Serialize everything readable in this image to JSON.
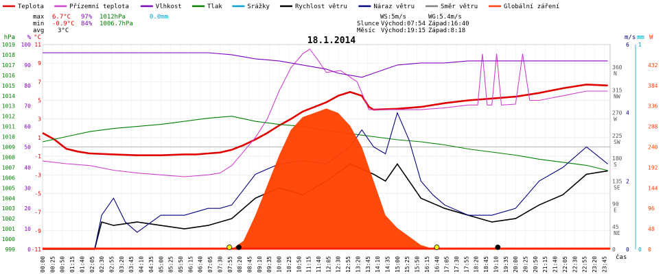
{
  "chart_data": {
    "type": "line",
    "title": "18.1.2014",
    "xlabel": "čas",
    "legend": [
      {
        "name": "Teplota",
        "color": "#e00000"
      },
      {
        "name": "Přízemní teplota",
        "color": "#d040d0"
      },
      {
        "name": "Vlhkost",
        "color": "#8000c0"
      },
      {
        "name": "Tlak",
        "color": "#008000"
      },
      {
        "name": "Srážky",
        "color": "#00a0d0"
      },
      {
        "name": "Rychlost větru",
        "color": "#000000"
      },
      {
        "name": "Náraz větru",
        "color": "#000080"
      },
      {
        "name": "Směr větru",
        "color": "#808080"
      },
      {
        "name": "Globální záření",
        "color": "#ff4000"
      }
    ],
    "stats": {
      "max": {
        "label": "max",
        "temp": "6.7°C",
        "hum": "97%",
        "press": "1012hPa",
        "rain": "0.0mm"
      },
      "min": {
        "label": "min",
        "temp": "-0.9°C",
        "hum": "84%",
        "press": "1006.7hPa"
      },
      "avg": {
        "label": "avg",
        "temp": "3°C"
      }
    },
    "wind_info": {
      "ws": "WS:5m/s",
      "wg": "WG:5.4m/s"
    },
    "sun_info": {
      "label": "Slunce",
      "rise": "Východ:07:54",
      "set": "Západ:16:40"
    },
    "moon_info": {
      "label": "Měsíc",
      "rise": "Východ:19:15",
      "set": "Západ:8:18"
    },
    "axes": {
      "pressure": {
        "unit": "hPa",
        "ticks": [
          "1019",
          "1018",
          "1017",
          "1016",
          "1015",
          "1014",
          "1013",
          "1012",
          "1011",
          "1010",
          "1009",
          "1008",
          "1007",
          "1006",
          "1005",
          "1004",
          "1003",
          "1002",
          "1001",
          "1000",
          "999"
        ],
        "color": "#008000"
      },
      "humidity": {
        "unit": "%",
        "ticks": [
          "100",
          "90",
          "80",
          "70",
          "60",
          "50",
          "40",
          "30",
          "20",
          "10",
          "0"
        ],
        "color": "#8000c0"
      },
      "temperature": {
        "unit": "°C",
        "ticks": [
          "11",
          "9",
          "7",
          "5",
          "3",
          "1",
          "-1",
          "-3",
          "-5",
          "-7",
          "-9",
          "-11"
        ],
        "color": "#e00000"
      },
      "direction": {
        "ticks": [
          "360",
          "315",
          "270",
          "225",
          "180",
          "135",
          "90",
          "45",
          "0"
        ],
        "labels": [
          "N",
          "NW",
          "W",
          "SW",
          "S",
          "SE",
          "E",
          "NE",
          ""
        ]
      },
      "wind": {
        "unit": "m/s",
        "ticks": [
          "6",
          "4",
          "2",
          "0"
        ],
        "color": "#000080"
      },
      "rain": {
        "unit": "mm",
        "ticks": [
          "1",
          "0"
        ],
        "color": "#00a0d0"
      },
      "radiation": {
        "unit": "W",
        "ticks": [
          "432",
          "384",
          "336",
          "288",
          "240",
          "192",
          "144",
          "96",
          "48",
          "0"
        ],
        "color": "#ff4000"
      },
      "time": [
        "00:00",
        "00:25",
        "00:50",
        "01:15",
        "01:40",
        "02:05",
        "02:30",
        "02:55",
        "03:20",
        "03:45",
        "04:10",
        "04:35",
        "05:00",
        "05:25",
        "05:50",
        "06:15",
        "06:40",
        "07:05",
        "07:30",
        "07:55",
        "08:20",
        "08:45",
        "09:10",
        "09:35",
        "10:00",
        "10:25",
        "10:50",
        "11:15",
        "11:40",
        "12:05",
        "12:30",
        "12:55",
        "13:20",
        "13:45",
        "14:10",
        "14:35",
        "15:00",
        "15:25",
        "15:50",
        "16:15",
        "16:40",
        "17:05",
        "17:30",
        "17:55",
        "18:20",
        "18:45",
        "19:10",
        "19:35",
        "20:00",
        "20:25",
        "20:50",
        "21:15",
        "21:40",
        "22:05",
        "22:30",
        "22:55",
        "23:20",
        "23:45"
      ]
    },
    "series": [
      {
        "name": "Teplota",
        "unit": "°C",
        "points": [
          [
            0,
            1.5
          ],
          [
            0.5,
            0.8
          ],
          [
            1,
            -0.2
          ],
          [
            1.5,
            -0.5
          ],
          [
            2,
            -0.7
          ],
          [
            3,
            -0.8
          ],
          [
            4,
            -0.9
          ],
          [
            5,
            -0.9
          ],
          [
            6,
            -0.8
          ],
          [
            6.5,
            -0.8
          ],
          [
            7,
            -0.7
          ],
          [
            7.5,
            -0.6
          ],
          [
            8,
            -0.3
          ],
          [
            8.5,
            0.2
          ],
          [
            9,
            0.8
          ],
          [
            9.5,
            1.5
          ],
          [
            10,
            2.3
          ],
          [
            10.5,
            3
          ],
          [
            11,
            3.8
          ],
          [
            11.5,
            4.3
          ],
          [
            12,
            4.8
          ],
          [
            12.5,
            5.5
          ],
          [
            13,
            5.9
          ],
          [
            13.5,
            5.5
          ],
          [
            13.8,
            4.3
          ],
          [
            14,
            4
          ],
          [
            15,
            4.1
          ],
          [
            16,
            4.3
          ],
          [
            17,
            4.7
          ],
          [
            18,
            5
          ],
          [
            19,
            5.2
          ],
          [
            20,
            5.4
          ],
          [
            21,
            5.8
          ],
          [
            22,
            6.3
          ],
          [
            23,
            6.7
          ],
          [
            23.9,
            6.6
          ]
        ]
      },
      {
        "name": "Přízemní teplota",
        "unit": "°C",
        "points": [
          [
            0,
            -1.5
          ],
          [
            1,
            -1.8
          ],
          [
            2,
            -2
          ],
          [
            3,
            -2.5
          ],
          [
            4,
            -2.8
          ],
          [
            5,
            -3
          ],
          [
            6,
            -3.2
          ],
          [
            7,
            -3
          ],
          [
            7.5,
            -2.8
          ],
          [
            8,
            -2
          ],
          [
            8.5,
            -0.5
          ],
          [
            9,
            1
          ],
          [
            9.5,
            3
          ],
          [
            10,
            6
          ],
          [
            10.5,
            8.5
          ],
          [
            11,
            10
          ],
          [
            11.3,
            10.5
          ],
          [
            11.6,
            9.5
          ],
          [
            12,
            8
          ],
          [
            12.6,
            8.2
          ],
          [
            13.3,
            7
          ],
          [
            13.8,
            4
          ],
          [
            14,
            4
          ],
          [
            15,
            4
          ],
          [
            16,
            4
          ],
          [
            17,
            4.2
          ],
          [
            18,
            4.5
          ],
          [
            18.4,
            4.5
          ],
          [
            18.6,
            10
          ],
          [
            18.8,
            4.5
          ],
          [
            19,
            4.5
          ],
          [
            19.2,
            10
          ],
          [
            19.4,
            4.5
          ],
          [
            20,
            4.6
          ],
          [
            20.3,
            10
          ],
          [
            20.6,
            5
          ],
          [
            21,
            5
          ],
          [
            22,
            5.5
          ],
          [
            23,
            6
          ],
          [
            23.9,
            6
          ]
        ]
      },
      {
        "name": "Vlhkost",
        "unit": "%",
        "points": [
          [
            0,
            96
          ],
          [
            2,
            96
          ],
          [
            4,
            96
          ],
          [
            6,
            96
          ],
          [
            7,
            96
          ],
          [
            8,
            95
          ],
          [
            9,
            93
          ],
          [
            10,
            92
          ],
          [
            11,
            90
          ],
          [
            12,
            88
          ],
          [
            12.5,
            86
          ],
          [
            13,
            85
          ],
          [
            13.5,
            84
          ],
          [
            14,
            86
          ],
          [
            14.5,
            88
          ],
          [
            15,
            90
          ],
          [
            16,
            91
          ],
          [
            17,
            91
          ],
          [
            18,
            92
          ],
          [
            20,
            92
          ],
          [
            22,
            92
          ],
          [
            23,
            92
          ],
          [
            23.9,
            92
          ]
        ]
      },
      {
        "name": "Tlak",
        "unit": "hPa",
        "points": [
          [
            0,
            1009.5
          ],
          [
            1,
            1010
          ],
          [
            2,
            1010.5
          ],
          [
            3,
            1010.8
          ],
          [
            4,
            1011
          ],
          [
            5,
            1011.2
          ],
          [
            6,
            1011.5
          ],
          [
            7,
            1011.8
          ],
          [
            8,
            1012
          ],
          [
            9,
            1011.5
          ],
          [
            10,
            1011.2
          ],
          [
            11,
            1011
          ],
          [
            12,
            1010.6
          ],
          [
            13,
            1010.3
          ],
          [
            14,
            1010
          ],
          [
            15,
            1009.7
          ],
          [
            16,
            1009.5
          ],
          [
            17,
            1009.2
          ],
          [
            18,
            1008.8
          ],
          [
            19,
            1008.5
          ],
          [
            20,
            1008.2
          ],
          [
            21,
            1007.8
          ],
          [
            22,
            1007.5
          ],
          [
            23,
            1007.2
          ],
          [
            23.9,
            1006.7
          ]
        ]
      },
      {
        "name": "Rychlost větru",
        "unit": "m/s",
        "points": [
          [
            0,
            0
          ],
          [
            2.2,
            0
          ],
          [
            2.5,
            0.8
          ],
          [
            3,
            0.7
          ],
          [
            4,
            0.8
          ],
          [
            5,
            0.7
          ],
          [
            6,
            0.6
          ],
          [
            7,
            0.7
          ],
          [
            8,
            0.9
          ],
          [
            9,
            1.5
          ],
          [
            10,
            1.8
          ],
          [
            11,
            1.6
          ],
          [
            12,
            2
          ],
          [
            13,
            2.5
          ],
          [
            14,
            2.2
          ],
          [
            14.5,
            2
          ],
          [
            15,
            2.5
          ],
          [
            15.5,
            2
          ],
          [
            16,
            1.5
          ],
          [
            17,
            1.2
          ],
          [
            18,
            1
          ],
          [
            19,
            0.8
          ],
          [
            20,
            0.9
          ],
          [
            21,
            1.3
          ],
          [
            22,
            1.6
          ],
          [
            23,
            2.2
          ],
          [
            23.9,
            2.3
          ]
        ]
      },
      {
        "name": "Náraz větru",
        "unit": "m/s",
        "points": [
          [
            0,
            0
          ],
          [
            2.2,
            0
          ],
          [
            2.5,
            1
          ],
          [
            3,
            1.5
          ],
          [
            3.5,
            0.8
          ],
          [
            4,
            0.5
          ],
          [
            5,
            1
          ],
          [
            6,
            1
          ],
          [
            7,
            1.2
          ],
          [
            7.5,
            1.2
          ],
          [
            8,
            1.3
          ],
          [
            9,
            2.2
          ],
          [
            10,
            2.5
          ],
          [
            11,
            2.6
          ],
          [
            12,
            2.5
          ],
          [
            13,
            3
          ],
          [
            13.5,
            3.5
          ],
          [
            14,
            3
          ],
          [
            14.5,
            2.8
          ],
          [
            15,
            4
          ],
          [
            15.5,
            3.2
          ],
          [
            16,
            2
          ],
          [
            16.5,
            1.6
          ],
          [
            17,
            1.3
          ],
          [
            18,
            1
          ],
          [
            19,
            1
          ],
          [
            20,
            1.2
          ],
          [
            21,
            2
          ],
          [
            22,
            2.4
          ],
          [
            23,
            3
          ],
          [
            23.9,
            2.5
          ]
        ]
      },
      {
        "name": "Globální záření",
        "unit": "W",
        "points": [
          [
            8,
            0
          ],
          [
            8.5,
            20
          ],
          [
            9,
            80
          ],
          [
            9.5,
            150
          ],
          [
            10,
            220
          ],
          [
            10.5,
            280
          ],
          [
            11,
            310
          ],
          [
            11.5,
            320
          ],
          [
            12,
            330
          ],
          [
            12.5,
            320
          ],
          [
            13,
            290
          ],
          [
            13.5,
            240
          ],
          [
            14,
            160
          ],
          [
            14.5,
            80
          ],
          [
            15,
            50
          ],
          [
            15.5,
            30
          ],
          [
            16,
            10
          ],
          [
            16.6,
            0
          ]
        ]
      }
    ]
  }
}
